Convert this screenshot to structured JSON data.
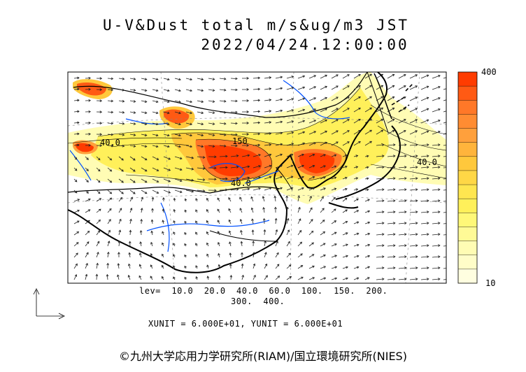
{
  "header": {
    "title": "U-V&Dust total m/s&ug/m3 JST",
    "datetime": "2022/04/24.12:00:00"
  },
  "colorbar": {
    "max_label": "400",
    "min_label": "10",
    "colors": [
      "#ff3c00",
      "#ff5a14",
      "#ff7828",
      "#ff8c32",
      "#ffa03c",
      "#ffb43c",
      "#ffc83c",
      "#ffd746",
      "#ffe650",
      "#fff05a",
      "#fff878",
      "#fffa96",
      "#fffcb4",
      "#fffdc8",
      "#fffee0"
    ]
  },
  "legend": {
    "lev_line1": "lev=  10.0  20.0  40.0  60.0  100.  150.  200.",
    "lev_line2": "300.  400.",
    "unit_line": "XUNIT = 6.000E+01, YUNIT = 6.000E+01"
  },
  "map_labels": {
    "west": "40.0",
    "central": "150",
    "south": "40.0",
    "east": "40.0"
  },
  "credit": "©九州大学応用力学研究所(RIAM)/国立環境研究所(NIES)"
}
